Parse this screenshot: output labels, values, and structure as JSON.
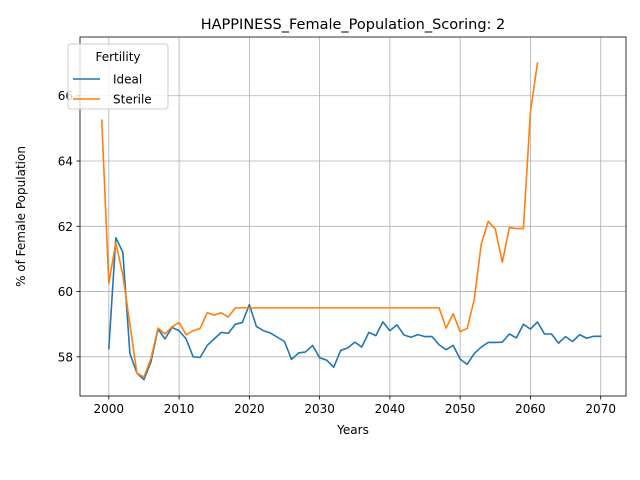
{
  "chart_data": {
    "type": "line",
    "title": "HAPPINESS_Female_Population_Scoring: 2",
    "xlabel": "Years",
    "ylabel": "% of Female Population",
    "xlim": [
      1995.9,
      2073.6
    ],
    "ylim": [
      56.8,
      67.8
    ],
    "xticks": [
      2000,
      2010,
      2020,
      2030,
      2040,
      2050,
      2060,
      2070
    ],
    "yticks": [
      58,
      60,
      62,
      64,
      66
    ],
    "grid": true,
    "legend": {
      "title": "Fertility",
      "placement": "upper-left"
    },
    "series": [
      {
        "name": "Ideal",
        "color": "#1f77b4",
        "x": [
          2000,
          2001,
          2002,
          2003,
          2004,
          2005,
          2006,
          2007,
          2008,
          2009,
          2010,
          2011,
          2012,
          2013,
          2014,
          2015,
          2016,
          2017,
          2018,
          2019,
          2020,
          2021,
          2022,
          2023,
          2024,
          2025,
          2026,
          2027,
          2028,
          2029,
          2030,
          2031,
          2032,
          2033,
          2034,
          2035,
          2036,
          2037,
          2038,
          2039,
          2040,
          2041,
          2042,
          2043,
          2044,
          2045,
          2046,
          2047,
          2048,
          2049,
          2050,
          2051,
          2052,
          2053,
          2054,
          2055,
          2056,
          2057,
          2058,
          2059,
          2060,
          2061,
          2062,
          2063,
          2064,
          2065,
          2066,
          2067,
          2068,
          2069,
          2070
        ],
        "y": [
          58.25,
          61.65,
          61.2,
          58.1,
          57.5,
          57.3,
          57.85,
          58.85,
          58.55,
          58.9,
          58.8,
          58.55,
          58.0,
          57.98,
          58.35,
          58.55,
          58.75,
          58.72,
          59.0,
          59.05,
          59.6,
          58.93,
          58.8,
          58.73,
          58.6,
          58.47,
          57.92,
          58.12,
          58.15,
          58.35,
          57.97,
          57.9,
          57.68,
          58.2,
          58.27,
          58.45,
          58.3,
          58.75,
          58.65,
          59.07,
          58.8,
          58.98,
          58.67,
          58.6,
          58.68,
          58.62,
          58.62,
          58.37,
          58.22,
          58.35,
          57.93,
          57.77,
          58.1,
          58.3,
          58.44,
          58.44,
          58.45,
          58.7,
          58.58,
          59.0,
          58.85,
          59.07,
          58.7,
          58.7,
          58.42,
          58.62,
          58.47,
          58.68,
          58.57,
          58.63,
          58.63
        ]
      },
      {
        "name": "Sterile",
        "color": "#ff7f0e",
        "x": [
          1999,
          2000,
          2001,
          2002,
          2003,
          2004,
          2005,
          2006,
          2007,
          2008,
          2009,
          2010,
          2011,
          2012,
          2013,
          2014,
          2015,
          2016,
          2017,
          2018,
          2019,
          2020,
          2021,
          2022,
          2023,
          2024,
          2025,
          2026,
          2027,
          2028,
          2029,
          2030,
          2031,
          2032,
          2033,
          2034,
          2035,
          2036,
          2037,
          2038,
          2039,
          2040,
          2041,
          2042,
          2043,
          2044,
          2045,
          2046,
          2047,
          2048,
          2049,
          2050,
          2051,
          2052,
          2053,
          2054,
          2055,
          2056,
          2057,
          2058,
          2059,
          2060,
          2061
        ],
        "y": [
          65.25,
          60.25,
          61.5,
          60.5,
          59.0,
          57.5,
          57.38,
          57.95,
          58.88,
          58.7,
          58.92,
          59.05,
          58.68,
          58.8,
          58.87,
          59.35,
          59.28,
          59.35,
          59.22,
          59.5,
          59.5,
          59.5,
          59.5,
          59.5,
          59.5,
          59.5,
          59.5,
          59.5,
          59.5,
          59.5,
          59.5,
          59.5,
          59.5,
          59.5,
          59.5,
          59.5,
          59.5,
          59.5,
          59.5,
          59.5,
          59.5,
          59.5,
          59.5,
          59.5,
          59.5,
          59.5,
          59.5,
          59.5,
          59.5,
          58.88,
          59.32,
          58.77,
          58.87,
          59.75,
          61.45,
          62.15,
          61.92,
          60.9,
          61.96,
          61.93,
          61.93,
          65.5,
          67.0
        ]
      }
    ]
  }
}
